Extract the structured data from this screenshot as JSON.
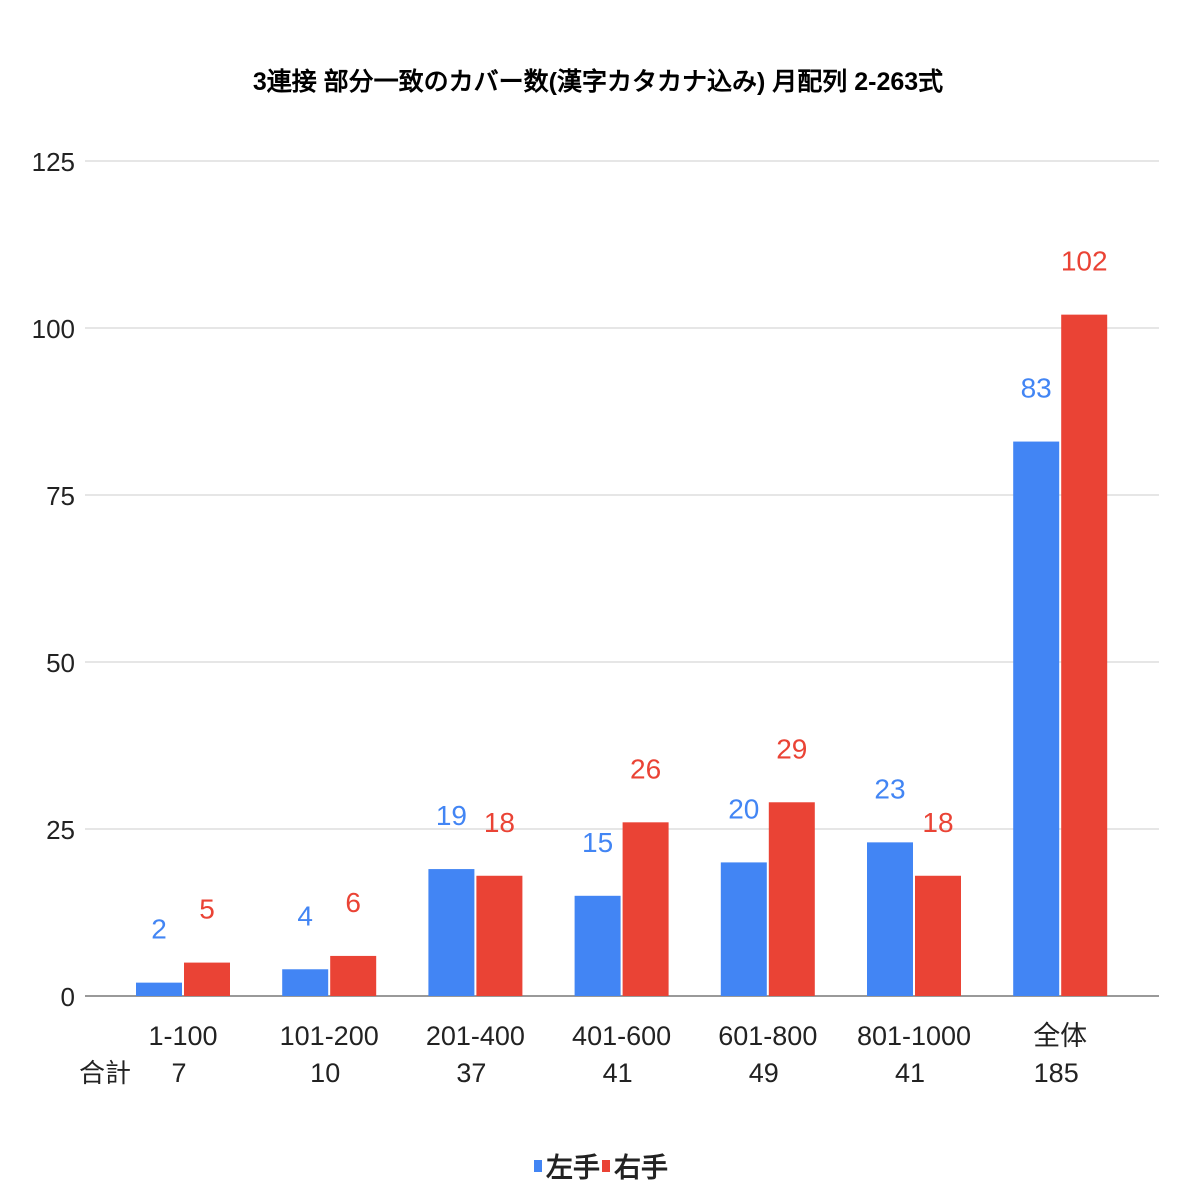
{
  "chart_data": {
    "type": "bar",
    "title": "3連接 部分一致のカバー数(漢字カタカナ込み) 月配列 2-263式",
    "categories": [
      "1-100",
      "101-200",
      "201-400",
      "401-600",
      "601-800",
      "801-1000",
      "全体"
    ],
    "totals_label": "合計",
    "totals": [
      "7",
      "10",
      "37",
      "41",
      "49",
      "41",
      "185"
    ],
    "series": [
      {
        "name": "左手",
        "color": "#4285f4",
        "values": [
          2,
          4,
          19,
          15,
          20,
          23,
          83
        ]
      },
      {
        "name": "右手",
        "color": "#ea4335",
        "values": [
          5,
          6,
          18,
          26,
          29,
          18,
          102
        ]
      }
    ],
    "ylim": [
      0,
      125
    ],
    "yticks": [
      0,
      25,
      50,
      75,
      100,
      125
    ],
    "grid": true,
    "legend": "bottom",
    "xlabel": "",
    "ylabel": ""
  }
}
